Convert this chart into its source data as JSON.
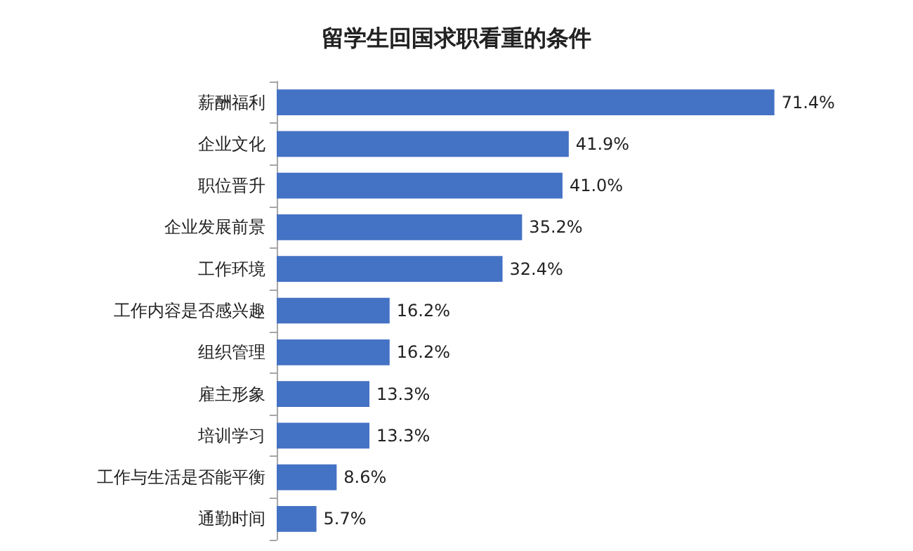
{
  "chart_data": {
    "type": "bar",
    "orientation": "horizontal",
    "title": "留学生回国求职看重的条件",
    "categories": [
      "薪酬福利",
      "企业文化",
      "职位晋升",
      "企业发展前景",
      "工作环境",
      "工作内容是否感兴趣",
      "组织管理",
      "雇主形象",
      "培训学习",
      "工作与生活是否能平衡",
      "通勤时间"
    ],
    "values": [
      71.4,
      41.9,
      41.0,
      35.2,
      32.4,
      16.2,
      16.2,
      13.3,
      13.3,
      8.6,
      5.7
    ],
    "value_labels": [
      "71.4%",
      "41.9%",
      "41.0%",
      "35.2%",
      "32.4%",
      "16.2%",
      "16.2%",
      "13.3%",
      "13.3%",
      "8.6%",
      "5.7%"
    ],
    "color": "#4472c4",
    "tick_labels": "y"
  }
}
